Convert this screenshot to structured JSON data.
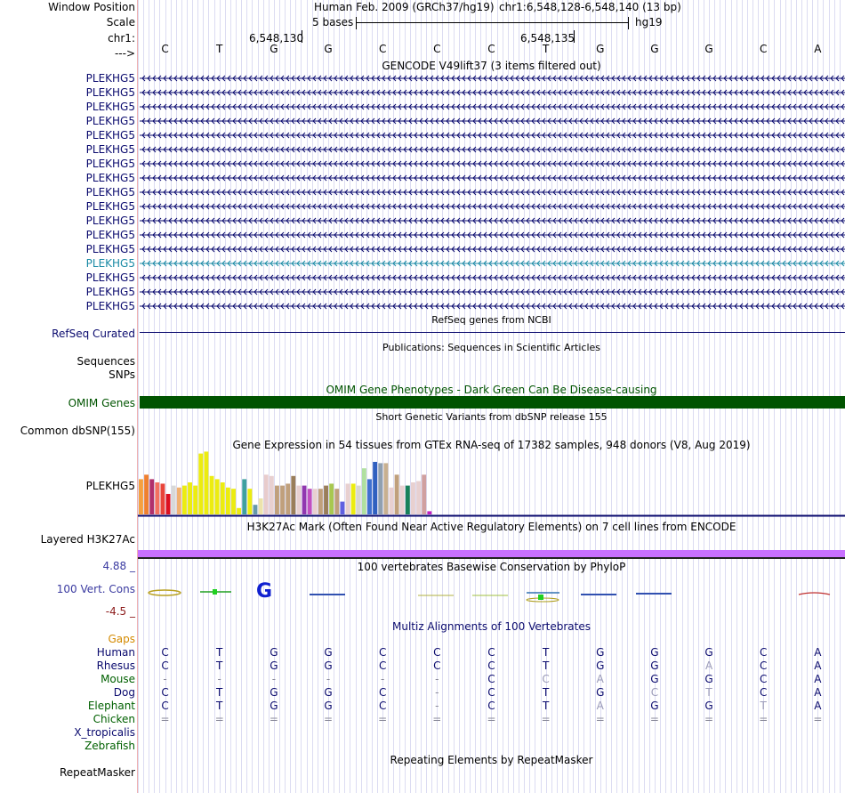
{
  "header": {
    "window_position_label": "Window Position",
    "scale_label": "Scale",
    "chrom_label": "chr1:",
    "strand_label": "--->",
    "assembly_text": "Human Feb. 2009 (GRCh37/hg19)",
    "position_text": "chr1:6,548,128-6,548,140 (13 bp)",
    "scale_text": "5 bases",
    "db_text": "hg19",
    "coord_ticks": [
      "6,548,130",
      "6,548,135"
    ]
  },
  "bases": [
    "C",
    "T",
    "G",
    "G",
    "C",
    "C",
    "C",
    "T",
    "G",
    "G",
    "G",
    "C",
    "A"
  ],
  "gencode": {
    "title": "GENCODE V49lift37 (3 items filtered out)",
    "items": [
      {
        "label": "PLEKHG5",
        "color": "#0a0a6e"
      },
      {
        "label": "PLEKHG5",
        "color": "#0a0a6e"
      },
      {
        "label": "PLEKHG5",
        "color": "#0a0a6e"
      },
      {
        "label": "PLEKHG5",
        "color": "#0a0a6e"
      },
      {
        "label": "PLEKHG5",
        "color": "#0a0a6e"
      },
      {
        "label": "PLEKHG5",
        "color": "#0a0a6e"
      },
      {
        "label": "PLEKHG5",
        "color": "#0a0a6e"
      },
      {
        "label": "PLEKHG5",
        "color": "#0a0a6e"
      },
      {
        "label": "PLEKHG5",
        "color": "#0a0a6e"
      },
      {
        "label": "PLEKHG5",
        "color": "#0a0a6e"
      },
      {
        "label": "PLEKHG5",
        "color": "#0a0a6e"
      },
      {
        "label": "PLEKHG5",
        "color": "#0a0a6e"
      },
      {
        "label": "PLEKHG5",
        "color": "#0a0a6e"
      },
      {
        "label": "PLEKHG5",
        "color": "#1a8aa5"
      },
      {
        "label": "PLEKHG5",
        "color": "#0a0a6e"
      },
      {
        "label": "PLEKHG5",
        "color": "#0a0a6e"
      },
      {
        "label": "PLEKHG5",
        "color": "#0a0a6e"
      }
    ]
  },
  "refseq": {
    "title": "RefSeq genes from NCBI",
    "label": "RefSeq Curated",
    "color": "#0a0a6e"
  },
  "publications": {
    "title": "Publications: Sequences in Scientific Articles",
    "label1": "Sequences",
    "label2": "SNPs"
  },
  "omim": {
    "title": "OMIM Gene Phenotypes - Dark Green Can Be Disease-causing",
    "label": "OMIM Genes",
    "color": "#005400"
  },
  "dbsnp": {
    "title": "Short Genetic Variants from dbSNP release 155",
    "label": "Common dbSNP(155)"
  },
  "gtex": {
    "title": "Gene Expression in 54 tissues from GTEx RNA-seq of 17382 samples, 948 donors (V8, Aug 2019)",
    "label": "PLEKHG5",
    "values": [
      0.55,
      0.62,
      0.55,
      0.5,
      0.48,
      0.32,
      0.45,
      0.42,
      0.45,
      0.5,
      0.45,
      0.95,
      0.98,
      0.6,
      0.55,
      0.5,
      0.42,
      0.4,
      0.1,
      0.55,
      0.4,
      0.15,
      0.25,
      0.62,
      0.6,
      0.45,
      0.45,
      0.48,
      0.6,
      0.45,
      0.45,
      0.4,
      0.4,
      0.4,
      0.45,
      0.48,
      0.4,
      0.2,
      0.48,
      0.48,
      0.45,
      0.72,
      0.55,
      0.82,
      0.8,
      0.8,
      0.42,
      0.62,
      0.45,
      0.45,
      0.5,
      0.52,
      0.62,
      0.05
    ],
    "colors": [
      "#f5a040",
      "#ef8030",
      "#b0306c",
      "#f27060",
      "#e8443a",
      "#dd1020",
      "#d8d8d8",
      "#f2b070",
      "#ecec10",
      "#ecec10",
      "#ecec10",
      "#ecec10",
      "#ecec10",
      "#ecec10",
      "#ecec10",
      "#ecec10",
      "#ecec10",
      "#ecec10",
      "#ecec10",
      "#40a0a0",
      "#ecec10",
      "#6699aa",
      "#ece3ac",
      "#e8cccc",
      "#e8d0d0",
      "#c0a07c",
      "#c0a07c",
      "#c0a07c",
      "#9a7e5a",
      "#e8d0d0",
      "#9038b0",
      "#c050c0",
      "#e8d0d0",
      "#c0a07c",
      "#9a7e5a",
      "#a8c850",
      "#c0a07c",
      "#6060e0",
      "#e8d0d0",
      "#ecec10",
      "#d8d8d0",
      "#b0e0a0",
      "#4070d0",
      "#3060c0",
      "#90a0b0",
      "#c8b090",
      "#e8d0d0",
      "#c0a07c",
      "#e8d0d0",
      "#18805a",
      "#e8d0d0",
      "#e8d0d0",
      "#d0a0a0",
      "#c020c0"
    ]
  },
  "h3k27ac": {
    "title": "H3K27Ac Mark (Often Found Near Active Regulatory Elements) on 7 cell lines from ENCODE",
    "label": "Layered H3K27Ac",
    "color": "#c870ff"
  },
  "phylop": {
    "title": "100 vertebrates Basewise Conservation by PhyloP",
    "label": "100 Vert. Cons",
    "ymax": "4.88 _",
    "ymin": "-4.5 _",
    "color": "#3a3aa0"
  },
  "multiz": {
    "title": "Multiz Alignments of 100 Vertebrates",
    "gaps_label": "Gaps",
    "species": [
      {
        "name": "Human",
        "color": "#0a0a6e",
        "seq": [
          "C",
          "T",
          "G",
          "G",
          "C",
          "C",
          "C",
          "T",
          "G",
          "G",
          "G",
          "C",
          "A"
        ]
      },
      {
        "name": "Rhesus",
        "color": "#0a0a6e",
        "seq": [
          "C",
          "T",
          "G",
          "G",
          "C",
          "C",
          "C",
          "T",
          "G",
          "G",
          "A",
          "C",
          "A"
        ]
      },
      {
        "name": "Mouse",
        "color": "#006000",
        "seq": [
          "-",
          "-",
          "-",
          "-",
          "-",
          "-",
          "C",
          "C",
          "A",
          "G",
          "G",
          "C",
          "A"
        ]
      },
      {
        "name": "Dog",
        "color": "#0a0a6e",
        "seq": [
          "C",
          "T",
          "G",
          "G",
          "C",
          "-",
          "C",
          "T",
          "G",
          "C",
          "T",
          "C",
          "A"
        ]
      },
      {
        "name": "Elephant",
        "color": "#006000",
        "seq": [
          "C",
          "T",
          "G",
          "G",
          "C",
          "-",
          "C",
          "T",
          "A",
          "G",
          "G",
          "T",
          "A"
        ]
      },
      {
        "name": "Chicken",
        "color": "#006000",
        "seq": [
          "=",
          "=",
          "=",
          "=",
          "=",
          "=",
          "=",
          "=",
          "=",
          "=",
          "=",
          "=",
          "="
        ]
      },
      {
        "name": "X_tropicalis",
        "color": "#0a0a6e",
        "seq": []
      },
      {
        "name": "Zebrafish",
        "color": "#006000",
        "seq": []
      }
    ]
  },
  "repeatmasker": {
    "title": "Repeating Elements by RepeatMasker",
    "label": "RepeatMasker"
  }
}
